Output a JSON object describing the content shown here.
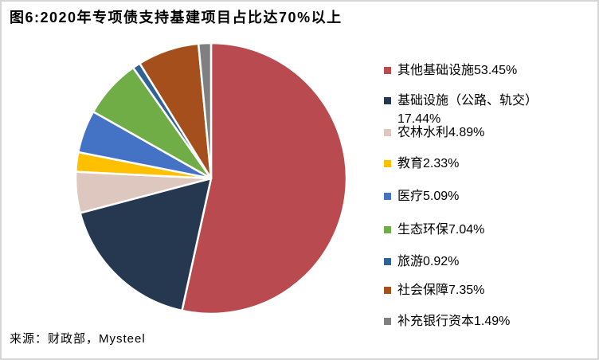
{
  "title": "图6:2020年专项债支持基建项目占比达70%以上",
  "source": "来源：财政部，Mysteel",
  "chart_data": {
    "type": "pie",
    "title": "图6:2020年专项债支持基建项目占比达70%以上",
    "start_angle_deg": 0,
    "direction": "clockwise",
    "legend_position": "right",
    "total": 100.0,
    "slices": [
      {
        "label": "其他基础设施",
        "value": 53.45,
        "pct_label": "53.45%",
        "color": "#B84A50"
      },
      {
        "label": "基础设施（公路、轨交）",
        "value": 17.44,
        "pct_label": "17.44%",
        "color": "#26384F"
      },
      {
        "label": "农林水利",
        "value": 4.89,
        "pct_label": "4.89%",
        "color": "#DEC7BE"
      },
      {
        "label": "教育",
        "value": 2.33,
        "pct_label": "2.33%",
        "color": "#FFC000"
      },
      {
        "label": "医疗",
        "value": 5.09,
        "pct_label": "5.09%",
        "color": "#4472C4"
      },
      {
        "label": "生态环保",
        "value": 7.04,
        "pct_label": "7.04%",
        "color": "#70AD47"
      },
      {
        "label": "旅游",
        "value": 0.92,
        "pct_label": "0.92%",
        "color": "#2E6393"
      },
      {
        "label": "社会保障",
        "value": 7.35,
        "pct_label": "7.35%",
        "color": "#A5501C"
      },
      {
        "label": "补充银行资本",
        "value": 1.49,
        "pct_label": "1.49%",
        "color": "#808080"
      }
    ]
  }
}
